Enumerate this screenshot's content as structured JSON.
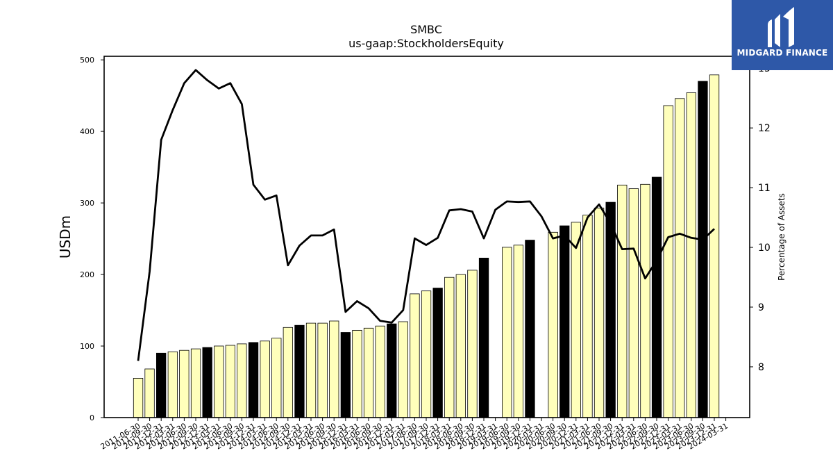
{
  "chart_data": {
    "type": "bar+line",
    "title": "SMBC",
    "subtitle": "us-gaap:StockholdersEquity",
    "ylabel": "USDm",
    "y2label": "Percentage of Assets",
    "ylim": [
      0,
      505
    ],
    "y2lim": [
      7.15,
      13.2
    ],
    "yticks": [
      0,
      100,
      200,
      300,
      400,
      500
    ],
    "y2ticks": [
      8,
      9,
      10,
      11,
      12,
      13
    ],
    "colors": {
      "bar_fill": "#ffffbb",
      "bar_highlight": "#000000",
      "bar_edge": "#000000",
      "line": "#000000"
    },
    "categories": [
      "2011-06-30",
      "2011-09-30",
      "2011-12-31",
      "2012-03-31",
      "2012-06-30",
      "2012-09-30",
      "2012-12-31",
      "2013-03-31",
      "2013-06-30",
      "2013-09-30",
      "2013-12-31",
      "2014-03-31",
      "2014-06-30",
      "2014-09-30",
      "2014-12-31",
      "2015-03-31",
      "2015-06-30",
      "2015-09-30",
      "2015-12-31",
      "2016-03-31",
      "2016-06-30",
      "2016-09-30",
      "2016-12-31",
      "2017-03-31",
      "2017-06-30",
      "2017-09-30",
      "2017-12-31",
      "2018-03-31",
      "2018-06-30",
      "2018-09-30",
      "2018-12-31",
      "2019-03-31",
      "2019-06-30",
      "2019-09-30",
      "2019-12-31",
      "2020-03-31",
      "2020-06-30",
      "2020-09-30",
      "2020-12-31",
      "2021-03-31",
      "2021-06-30",
      "2021-09-30",
      "2021-12-31",
      "2022-03-31",
      "2022-06-30",
      "2022-09-30",
      "2022-12-31",
      "2023-03-31",
      "2023-06-30",
      "2023-09-30",
      "2023-12-31",
      "2024-03-31"
    ],
    "visible_tick_labels": [
      "2011-06-30",
      "2011-09-30",
      "2011-12-31",
      "2012-03-31",
      "2012-06-30",
      "2012-09-30",
      "2012-12-31",
      "2013-03-31",
      "2013-06-30",
      "2013-09-30",
      "2013-12-31",
      "2014-03-31",
      "2014-06-30",
      "2014-09-30",
      "2014-12-31",
      "2015-03-31",
      "2015-06-30",
      "2015-09-30",
      "2015-12-31",
      "2016-03-31",
      "2016-06-30",
      "2016-09-30",
      "2016-12-31",
      "2017-03-31",
      "2017-06-30",
      "2017-09-30",
      "2017-12-31",
      "2018-03-31",
      "2018-06-30",
      "2018-09-30",
      "2018-12-31",
      "2019-03-31",
      "2019-06-30",
      "2019-09-30",
      "2019-12-31",
      "2020-03-31",
      "2020-06-30",
      "2020-09-30",
      "2020-12-31",
      "2021-03-31",
      "2021-06-30",
      "2021-09-30",
      "2021-12-31",
      "2022-03-31",
      "2022-06-30",
      "2022-09-30",
      "2022-12-31",
      "2023-03-31",
      "2023-06-30",
      "2023-09-30",
      "2023-12-31",
      "2024-03-31"
    ],
    "series": [
      {
        "type": "bar",
        "values": [
          55,
          68,
          90,
          92,
          94,
          96,
          98,
          100,
          101,
          103,
          105,
          107,
          111,
          126,
          129,
          132,
          132,
          135,
          119,
          122,
          125,
          128,
          131,
          134,
          173,
          177,
          181,
          196,
          200,
          206,
          223,
          null,
          238,
          241,
          248,
          null,
          259,
          268,
          273,
          283,
          293,
          301,
          325,
          320,
          326,
          336,
          436,
          446,
          454,
          470,
          479,
          null
        ],
        "highlight": [
          false,
          false,
          true,
          false,
          false,
          false,
          true,
          false,
          false,
          false,
          true,
          false,
          false,
          false,
          true,
          false,
          false,
          false,
          true,
          false,
          false,
          false,
          true,
          false,
          false,
          false,
          true,
          false,
          false,
          false,
          true,
          false,
          false,
          false,
          true,
          false,
          false,
          true,
          false,
          false,
          false,
          true,
          false,
          false,
          false,
          true,
          false,
          false,
          false,
          true,
          false,
          false
        ]
      },
      {
        "type": "line",
        "axis": "y2",
        "values": [
          8.1,
          9.6,
          11.8,
          12.3,
          12.75,
          12.97,
          12.8,
          12.66,
          12.75,
          12.4,
          11.05,
          10.8,
          10.87,
          9.7,
          10.03,
          10.2,
          10.2,
          10.3,
          8.92,
          9.1,
          8.98,
          8.77,
          8.74,
          8.95,
          10.15,
          10.04,
          10.16,
          10.62,
          10.64,
          10.6,
          10.15,
          10.63,
          10.77,
          10.76,
          10.77,
          10.52,
          10.15,
          10.2,
          9.99,
          10.5,
          10.72,
          10.4,
          9.97,
          9.98,
          9.48,
          9.78,
          10.17,
          10.23,
          10.16,
          10.13,
          10.31,
          null
        ]
      }
    ]
  },
  "logo": {
    "text": "MIDGARD FINANCE",
    "icon": "midgard-logo-icon"
  }
}
